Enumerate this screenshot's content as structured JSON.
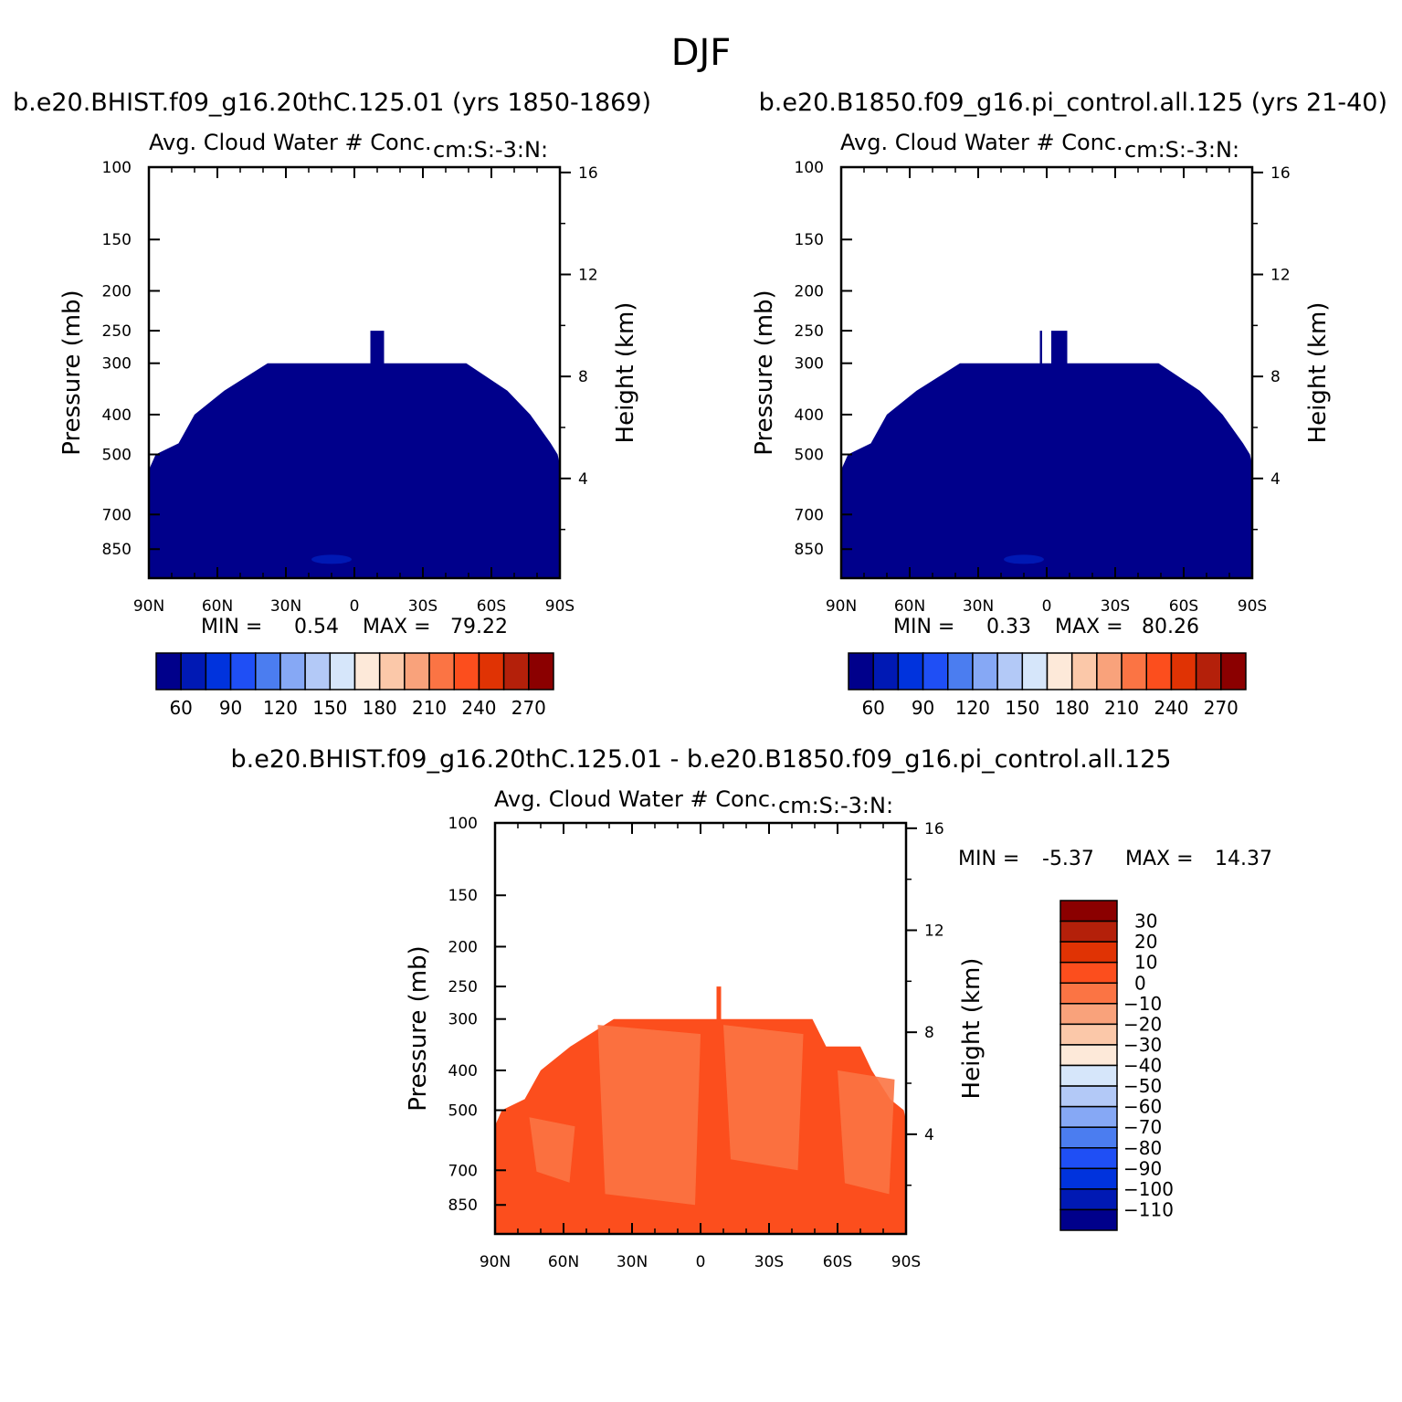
{
  "page": {
    "title": "DJF",
    "run_title_1": "b.e20.BHIST.f09_g16.20thC.125.01 (yrs 1850-1869)",
    "run_title_2": "b.e20.B1850.f09_g16.pi_control.all.125 (yrs 21-40)",
    "diff_title": "b.e20.BHIST.f09_g16.20thC.125.01 - b.e20.B1850.f09_g16.pi_control.all.125"
  },
  "chart_data": [
    {
      "type": "heatmap",
      "panel": "top-left",
      "title": "Avg. Cloud Water # Conc.",
      "units": "cm:S:-3:N:",
      "xlabel": "",
      "ylabel": "Pressure (mb)",
      "y2label": "Height (km)",
      "x_ticks": [
        "90N",
        "60N",
        "30N",
        "0",
        "30S",
        "60S",
        "90S"
      ],
      "y_ticks": [
        100,
        150,
        200,
        250,
        300,
        400,
        500,
        700,
        850
      ],
      "y2_ticks": [
        16,
        12,
        8,
        4
      ],
      "y_scale": "log",
      "min_label": "MIN =",
      "min": "0.54",
      "max_label": "MAX =",
      "max": "79.22",
      "fill_color": "#00008b",
      "cloud_top_profile": [
        [
          -90,
          545
        ],
        [
          -87,
          500
        ],
        [
          -77,
          470
        ],
        [
          -70,
          400
        ],
        [
          -57,
          350
        ],
        [
          -38,
          300
        ],
        [
          7,
          300
        ],
        [
          7,
          250
        ],
        [
          13,
          250
        ],
        [
          13,
          300
        ],
        [
          49,
          300
        ],
        [
          67,
          350
        ],
        [
          77,
          400
        ],
        [
          86,
          470
        ],
        [
          89,
          500
        ],
        [
          90,
          530
        ]
      ],
      "colorbar": {
        "orientation": "horizontal",
        "labels": [
          "60",
          "90",
          "120",
          "150",
          "180",
          "210",
          "240",
          "270"
        ],
        "colors": [
          "#00008b",
          "#0019b4",
          "#0033dd",
          "#1f4ff5",
          "#4b7df0",
          "#86a8f5",
          "#b3c9f7",
          "#d6e6fa",
          "#fde9d9",
          "#fbc8a9",
          "#f9a27b",
          "#fb7444",
          "#fc4e1d",
          "#e03304",
          "#b4200a",
          "#8b0000"
        ]
      }
    },
    {
      "type": "heatmap",
      "panel": "top-right",
      "title": "Avg. Cloud Water # Conc.",
      "units": "cm:S:-3:N:",
      "xlabel": "",
      "ylabel": "Pressure (mb)",
      "y2label": "Height (km)",
      "x_ticks": [
        "90N",
        "60N",
        "30N",
        "0",
        "30S",
        "60S",
        "90S"
      ],
      "y_ticks": [
        100,
        150,
        200,
        250,
        300,
        400,
        500,
        700,
        850
      ],
      "y2_ticks": [
        16,
        12,
        8,
        4
      ],
      "y_scale": "log",
      "min_label": "MIN =",
      "min": "0.33",
      "max_label": "MAX =",
      "max": "80.26",
      "fill_color": "#00008b",
      "cloud_top_profile": [
        [
          -90,
          545
        ],
        [
          -87,
          500
        ],
        [
          -77,
          470
        ],
        [
          -70,
          400
        ],
        [
          -57,
          350
        ],
        [
          -38,
          300
        ],
        [
          -3,
          300
        ],
        [
          -3,
          250
        ],
        [
          -2,
          250
        ],
        [
          -2,
          300
        ],
        [
          2,
          300
        ],
        [
          2,
          250
        ],
        [
          9,
          250
        ],
        [
          9,
          300
        ],
        [
          49,
          300
        ],
        [
          67,
          350
        ],
        [
          77,
          400
        ],
        [
          86,
          470
        ],
        [
          89,
          500
        ],
        [
          90,
          530
        ]
      ],
      "colorbar": {
        "orientation": "horizontal",
        "labels": [
          "60",
          "90",
          "120",
          "150",
          "180",
          "210",
          "240",
          "270"
        ],
        "colors": [
          "#00008b",
          "#0019b4",
          "#0033dd",
          "#1f4ff5",
          "#4b7df0",
          "#86a8f5",
          "#b3c9f7",
          "#d6e6fa",
          "#fde9d9",
          "#fbc8a9",
          "#f9a27b",
          "#fb7444",
          "#fc4e1d",
          "#e03304",
          "#b4200a",
          "#8b0000"
        ]
      }
    },
    {
      "type": "heatmap",
      "panel": "bottom-difference",
      "title": "Avg. Cloud Water # Conc.",
      "units": "cm:S:-3:N:",
      "xlabel": "",
      "ylabel": "Pressure (mb)",
      "y2label": "Height (km)",
      "x_ticks": [
        "90N",
        "60N",
        "30N",
        "0",
        "30S",
        "60S",
        "90S"
      ],
      "y_ticks": [
        100,
        150,
        200,
        250,
        300,
        400,
        500,
        700,
        850
      ],
      "y2_ticks": [
        16,
        12,
        8,
        4
      ],
      "y_scale": "log",
      "min_label": "MIN =",
      "min": "-5.37",
      "max_label": "MAX =",
      "max": "14.37",
      "fill_color": "#fc4e1d",
      "secondary_color": "#fb7444",
      "cloud_top_profile": [
        [
          -90,
          545
        ],
        [
          -87,
          500
        ],
        [
          -77,
          470
        ],
        [
          -70,
          400
        ],
        [
          -57,
          350
        ],
        [
          -38,
          300
        ],
        [
          7,
          300
        ],
        [
          7,
          250
        ],
        [
          9,
          250
        ],
        [
          9,
          300
        ],
        [
          49,
          300
        ],
        [
          55,
          350
        ],
        [
          70,
          350
        ],
        [
          75,
          400
        ],
        [
          83,
          470
        ],
        [
          89,
          500
        ],
        [
          90,
          530
        ]
      ],
      "colorbar": {
        "orientation": "vertical",
        "labels": [
          "30",
          "20",
          "10",
          "0",
          "-10",
          "-20",
          "-30",
          "-40",
          "-50",
          "-60",
          "-70",
          "-80",
          "-90",
          "-100",
          "-110"
        ],
        "colors": [
          "#8b0000",
          "#b4200a",
          "#e03304",
          "#fc4e1d",
          "#fb7444",
          "#f9a27b",
          "#fbc8a9",
          "#fde9d9",
          "#d6e6fa",
          "#b3c9f7",
          "#86a8f5",
          "#4b7df0",
          "#1f4ff5",
          "#0033dd",
          "#0019b4",
          "#00008b"
        ]
      }
    }
  ]
}
